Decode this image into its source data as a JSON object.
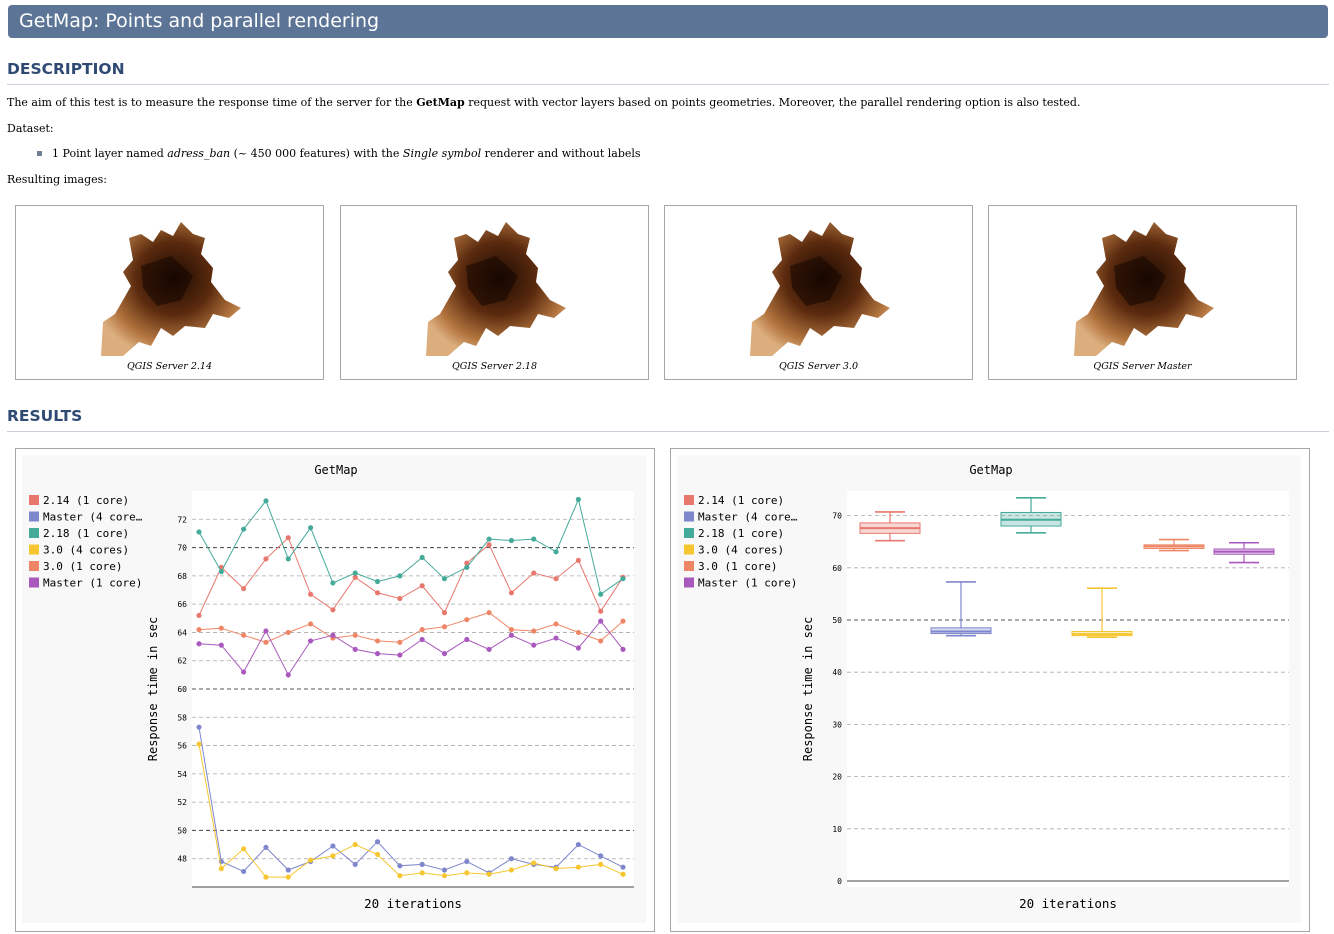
{
  "page": {
    "title": "GetMap: Points and parallel rendering",
    "description_heading": "DESCRIPTION",
    "results_heading": "RESULTS",
    "desc_pre": "The aim of this test is to measure the response time of the server for the ",
    "desc_bold": "GetMap",
    "desc_post": " request with vector layers based on points geometries. Moreover, the parallel rendering option is also tested.",
    "dataset_label": "Dataset:",
    "bullet_pre": "1 Point layer named ",
    "bullet_layer": "adress_ban",
    "bullet_mid": " (~ 450 000 features) with the ",
    "bullet_renderer": "Single symbol",
    "bullet_post": " renderer and without labels",
    "resulting_label": "Resulting images:",
    "images": [
      "QGIS Server 2.14",
      "QGIS Server 2.18",
      "QGIS Server 3.0",
      "QGIS Server Master"
    ]
  },
  "chart_data": [
    {
      "type": "line",
      "title": "GetMap",
      "xlabel": "20 iterations",
      "ylabel": "Response time in sec",
      "ylim": [
        46,
        74
      ],
      "yticks": [
        48,
        50,
        52,
        54,
        56,
        58,
        60,
        62,
        64,
        66,
        68,
        70,
        72
      ],
      "legend_position": "left",
      "x": [
        1,
        2,
        3,
        4,
        5,
        6,
        7,
        8,
        9,
        10,
        11,
        12,
        13,
        14,
        15,
        16,
        17,
        18,
        19,
        20
      ],
      "series": [
        {
          "name": "2.14 (1 core)",
          "color": "#e8776d",
          "values": [
            65.2,
            68.6,
            67.1,
            69.2,
            70.7,
            66.7,
            65.6,
            67.9,
            66.8,
            66.4,
            67.3,
            65.4,
            68.9,
            70.2,
            66.8,
            68.2,
            67.8,
            69.1,
            65.5,
            67.9
          ]
        },
        {
          "name": "Master (4 cores)",
          "display_name": "Master (4 core…",
          "color": "#7e86cc",
          "values": [
            57.3,
            47.8,
            47.1,
            48.8,
            47.2,
            47.8,
            48.9,
            47.6,
            49.2,
            47.5,
            47.6,
            47.2,
            47.8,
            47.0,
            48.0,
            47.6,
            47.4,
            49.0,
            48.2,
            47.4
          ]
        },
        {
          "name": "2.18 (1 core)",
          "color": "#44aa9a",
          "values": [
            71.1,
            68.3,
            71.3,
            73.3,
            69.2,
            71.4,
            67.5,
            68.2,
            67.6,
            68.0,
            69.3,
            67.8,
            68.6,
            70.6,
            70.5,
            70.6,
            69.7,
            73.4,
            66.7,
            67.8
          ]
        },
        {
          "name": "3.0 (4 cores)",
          "color": "#f6c630",
          "values": [
            56.1,
            47.3,
            48.7,
            46.7,
            46.7,
            47.9,
            48.2,
            49.0,
            48.3,
            46.8,
            47.0,
            46.8,
            47.0,
            46.9,
            47.2,
            47.7,
            47.3,
            47.4,
            47.6,
            46.9
          ]
        },
        {
          "name": "3.0 (1 core)",
          "color": "#ee8665",
          "values": [
            64.2,
            64.3,
            63.8,
            63.3,
            64.0,
            64.6,
            63.6,
            63.8,
            63.4,
            63.3,
            64.2,
            64.4,
            64.9,
            65.4,
            64.2,
            64.1,
            64.6,
            64.0,
            63.4,
            64.8
          ]
        },
        {
          "name": "Master (1 core)",
          "color": "#a959bd",
          "values": [
            63.2,
            63.1,
            61.2,
            64.1,
            61.0,
            63.4,
            63.8,
            62.8,
            62.5,
            62.4,
            63.5,
            62.5,
            63.5,
            62.8,
            63.8,
            63.1,
            63.6,
            62.9,
            64.8,
            62.8
          ]
        }
      ]
    },
    {
      "type": "box",
      "title": "GetMap",
      "xlabel": "20 iterations",
      "ylabel": "Response time in sec",
      "ylim": [
        0,
        75
      ],
      "yticks": [
        0,
        10,
        20,
        30,
        40,
        50,
        60,
        70
      ],
      "legend_position": "left",
      "series": [
        {
          "name": "2.14 (1 core)",
          "color": "#e8776d",
          "min": 65.2,
          "q1": 66.6,
          "median": 67.6,
          "q3": 68.6,
          "max": 70.7
        },
        {
          "name": "Master (4 cores)",
          "display_name": "Master (4 core…",
          "color": "#7e86cc",
          "min": 47.0,
          "q1": 47.4,
          "median": 47.8,
          "q3": 48.5,
          "max": 57.3
        },
        {
          "name": "2.18 (1 core)",
          "color": "#44aa9a",
          "min": 66.7,
          "q1": 68.0,
          "median": 69.2,
          "q3": 70.6,
          "max": 73.4
        },
        {
          "name": "3.0 (4 cores)",
          "color": "#f6c630",
          "min": 46.7,
          "q1": 47.0,
          "median": 47.3,
          "q3": 47.8,
          "max": 56.1
        },
        {
          "name": "3.0 (1 core)",
          "color": "#ee8665",
          "min": 63.3,
          "q1": 63.7,
          "median": 64.1,
          "q3": 64.4,
          "max": 65.4
        },
        {
          "name": "Master (1 core)",
          "color": "#a959bd",
          "min": 61.0,
          "q1": 62.6,
          "median": 63.1,
          "q3": 63.6,
          "max": 64.8
        }
      ]
    }
  ]
}
